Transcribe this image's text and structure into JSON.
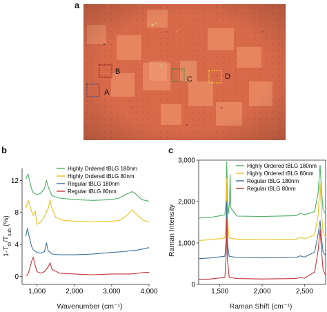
{
  "panel_a": {
    "letter": "a",
    "regions": [
      "A",
      "B",
      "C",
      "D"
    ]
  },
  "panel_b": {
    "letter": "b"
  },
  "panel_c": {
    "letter": "c"
  },
  "chart_data": [
    {
      "type": "line",
      "xlabel": "Wavenumber (cm⁻¹)",
      "ylabel": "1-Tₓ/Tₛᵤᵦ (%)",
      "ylabel_parts": {
        "a": "1-T",
        "b": "tb",
        "c": "/T",
        "d": "sub",
        "e": " (%)"
      },
      "xlim": [
        600,
        4000
      ],
      "ylim": [
        -1,
        13.5
      ],
      "xticks": [
        "1,000",
        "2,000",
        "3,000",
        "4,000"
      ],
      "xtick_values": [
        1000,
        2000,
        3000,
        4000
      ],
      "yticks": [
        "0",
        "4",
        "8",
        "12"
      ],
      "ytick_values": [
        0,
        4,
        8,
        12
      ],
      "legend_position": "top-right",
      "series": [
        {
          "name": "Highly Ordered tBLG 180nm",
          "color": "#4cae63",
          "x": [
            700,
            760,
            800,
            850,
            900,
            1000,
            1100,
            1200,
            1250,
            1300,
            1400,
            1600,
            2000,
            2500,
            3000,
            3200,
            3400,
            3550,
            3650,
            3800,
            4000
          ],
          "y": [
            12.2,
            12.8,
            12.0,
            11.0,
            10.5,
            10.2,
            10.4,
            11.0,
            12.0,
            11.2,
            10.1,
            9.8,
            9.6,
            9.5,
            9.6,
            9.8,
            10.3,
            10.6,
            10.3,
            9.6,
            9.4
          ]
        },
        {
          "name": "Highly Ordered tBLG 80nm",
          "color": "#e8c21f",
          "x": [
            700,
            760,
            800,
            850,
            900,
            950,
            1000,
            1100,
            1200,
            1300,
            1350,
            1400,
            1500,
            1700,
            2000,
            2500,
            3000,
            3200,
            3400,
            3550,
            3700,
            3850,
            4000
          ],
          "y": [
            8.5,
            9.5,
            9.0,
            8.2,
            7.6,
            8.2,
            6.5,
            6.8,
            7.5,
            8.5,
            9.5,
            8.5,
            7.4,
            7.0,
            6.9,
            6.8,
            6.9,
            7.0,
            7.6,
            8.3,
            7.6,
            7.0,
            6.8
          ]
        },
        {
          "name": "Regular tBLG 180nm",
          "color": "#3a6f9a",
          "x": [
            700,
            740,
            800,
            850,
            900,
            1000,
            1100,
            1200,
            1250,
            1300,
            1400,
            1600,
            2000,
            2500,
            3000,
            3300,
            3500,
            3700,
            3900,
            4000
          ],
          "y": [
            5.0,
            6.0,
            4.8,
            3.8,
            3.3,
            3.0,
            2.9,
            3.1,
            4.2,
            3.2,
            2.8,
            2.7,
            2.7,
            2.8,
            3.0,
            3.1,
            3.2,
            3.3,
            3.5,
            3.6
          ]
        },
        {
          "name": "Regular tBLG 80nm",
          "color": "#c2363a",
          "x": [
            700,
            760,
            800,
            850,
            900,
            950,
            1000,
            1100,
            1200,
            1300,
            1350,
            1400,
            1600,
            2000,
            2500,
            3000,
            3300,
            3500,
            3700,
            3900,
            4000
          ],
          "y": [
            0.1,
            0.3,
            0.9,
            1.8,
            2.4,
            1.4,
            0.6,
            0.4,
            0.6,
            1.2,
            1.7,
            0.9,
            0.4,
            0.3,
            0.2,
            0.3,
            0.3,
            0.3,
            0.4,
            0.5,
            0.5
          ]
        }
      ]
    },
    {
      "type": "line",
      "xlabel": "Raman Shift (cm⁻¹)",
      "ylabel": "Raman Intensity",
      "xlim": [
        1250,
        2750
      ],
      "ylim": [
        0,
        3000
      ],
      "xticks": [
        "1,500",
        "2,000",
        "2,500"
      ],
      "xtick_values": [
        1500,
        2000,
        2500
      ],
      "yticks": [
        "0",
        "1,000",
        "2,000",
        "3,000"
      ],
      "ytick_values": [
        0,
        1000,
        2000,
        3000
      ],
      "legend_position": "top-right",
      "series": [
        {
          "name": "Highly Ordered tBLG 180nm",
          "color": "#4cae63",
          "x": [
            1250,
            1400,
            1560,
            1575,
            1582,
            1590,
            1600,
            1615,
            1622,
            1630,
            1700,
            2000,
            2400,
            2450,
            2500,
            2620,
            2660,
            2685,
            2700,
            2720,
            2750
          ],
          "y": [
            1600,
            1620,
            1680,
            2100,
            2960,
            2100,
            1700,
            2000,
            2650,
            1850,
            1650,
            1640,
            1660,
            1720,
            1680,
            1760,
            2200,
            2880,
            2300,
            1800,
            1700
          ]
        },
        {
          "name": "Highly Ordered tBLG 80nm",
          "color": "#e8c21f",
          "x": [
            1250,
            1400,
            1560,
            1575,
            1582,
            1590,
            1610,
            1700,
            2000,
            2400,
            2450,
            2500,
            2620,
            2660,
            2685,
            2700,
            2720,
            2750
          ],
          "y": [
            1060,
            1080,
            1120,
            1600,
            2560,
            1550,
            1120,
            1090,
            1080,
            1090,
            1140,
            1100,
            1200,
            1650,
            2440,
            1750,
            1250,
            1150
          ]
        },
        {
          "name": "Regular tBLG 180nm",
          "color": "#3a6f9a",
          "x": [
            1250,
            1400,
            1560,
            1575,
            1582,
            1590,
            1610,
            1700,
            2000,
            2400,
            2450,
            2500,
            2620,
            2660,
            2685,
            2700,
            2720,
            2750
          ],
          "y": [
            620,
            640,
            680,
            1100,
            2000,
            1000,
            680,
            650,
            640,
            650,
            690,
            660,
            780,
            1200,
            1540,
            1150,
            780,
            700
          ]
        },
        {
          "name": "Regular tBLG 80nm",
          "color": "#c2363a",
          "x": [
            1250,
            1400,
            1560,
            1575,
            1582,
            1590,
            1610,
            1700,
            2000,
            2400,
            2450,
            2500,
            2620,
            2660,
            2685,
            2700,
            2720,
            2750
          ],
          "y": [
            120,
            130,
            170,
            700,
            1580,
            600,
            170,
            140,
            130,
            140,
            170,
            150,
            300,
            800,
            1320,
            850,
            350,
            220
          ]
        }
      ]
    }
  ]
}
